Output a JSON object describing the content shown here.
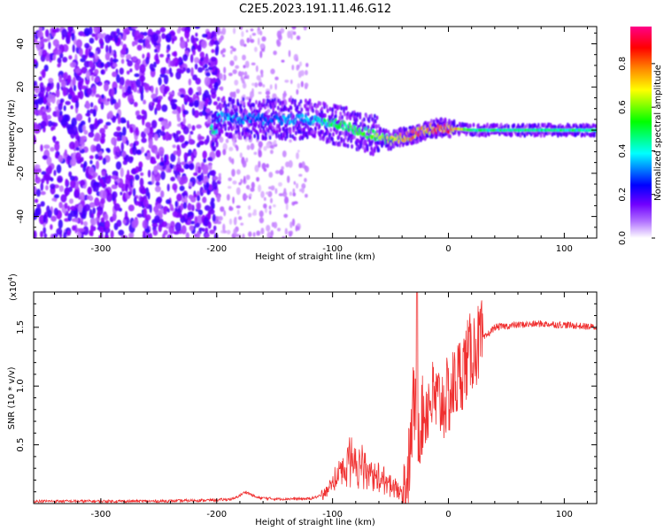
{
  "title": "C2E5.2023.191.11.46.G12",
  "chart_data": [
    {
      "type": "heatmap",
      "xlabel": "Height of straight line (km)",
      "ylabel": "Frequency (Hz)",
      "xlim": [
        -358,
        128
      ],
      "ylim": [
        -50,
        48
      ],
      "x_ticks": [
        -300,
        -200,
        -100,
        0,
        100
      ],
      "x_tick_labels": [
        "-300",
        "-200",
        "-100",
        "0",
        "100"
      ],
      "y_ticks": [
        -40,
        -20,
        0,
        20,
        40
      ],
      "y_tick_labels": [
        "-40",
        "-20",
        "0",
        "20",
        "40"
      ],
      "colorbar": {
        "label": "Normalized spectral amplitude",
        "range": [
          0,
          0.97
        ],
        "ticks": [
          0,
          0.2,
          0.4,
          0.6,
          0.8
        ],
        "tick_labels": [
          "0.0",
          "0.2",
          "0.4",
          "0.6",
          "0.8"
        ],
        "colors": [
          "#ffffff",
          "#8800ff",
          "#0000ff",
          "#00ffff",
          "#00ff00",
          "#ffff00",
          "#ff8800",
          "#ff0000",
          "#ff0088"
        ]
      },
      "ridge_track": [
        {
          "x": -200,
          "y": 6,
          "amplitude": 0.35
        },
        {
          "x": -160,
          "y": 5,
          "amplitude": 0.3
        },
        {
          "x": -120,
          "y": 5,
          "amplitude": 0.35
        },
        {
          "x": -100,
          "y": 3,
          "amplitude": 0.45
        },
        {
          "x": -80,
          "y": 0,
          "amplitude": 0.5
        },
        {
          "x": -60,
          "y": -3,
          "amplitude": 0.55
        },
        {
          "x": -50,
          "y": -5,
          "amplitude": 0.6
        },
        {
          "x": -40,
          "y": -3,
          "amplitude": 0.7
        },
        {
          "x": -30,
          "y": -2,
          "amplitude": 0.75
        },
        {
          "x": -20,
          "y": 0,
          "amplitude": 0.7
        },
        {
          "x": -10,
          "y": 1,
          "amplitude": 0.85
        },
        {
          "x": 0,
          "y": 1,
          "amplitude": 0.8
        },
        {
          "x": 20,
          "y": 0,
          "amplitude": 0.45
        },
        {
          "x": 60,
          "y": 0,
          "amplitude": 0.45
        },
        {
          "x": 100,
          "y": 0,
          "amplitude": 0.45
        },
        {
          "x": 128,
          "y": 0,
          "amplitude": 0.45
        }
      ]
    },
    {
      "type": "line",
      "xlabel": "Height of straight line (km)",
      "ylabel": "SNR (10 * v/v)",
      "y_scale_note": "(x10",
      "y_scale_exp": "4",
      "xlim": [
        -358,
        128
      ],
      "ylim": [
        0,
        1.8
      ],
      "x_ticks": [
        -300,
        -200,
        -100,
        0,
        100
      ],
      "x_tick_labels": [
        "-300",
        "-200",
        "-100",
        "0",
        "100"
      ],
      "y_ticks": [
        0.5,
        1.0,
        1.5
      ],
      "y_tick_labels": [
        "0.5",
        "1.0",
        "1.5"
      ],
      "series": [
        {
          "color": "#f03030",
          "x": [
            -358,
            -300,
            -250,
            -200,
            -185,
            -175,
            -165,
            -150,
            -120,
            -105,
            -95,
            -85,
            -75,
            -65,
            -55,
            -45,
            -38,
            -33,
            -30,
            -27,
            -22,
            -15,
            -8,
            0,
            10,
            20,
            30,
            40,
            60,
            80,
            100,
            128
          ],
          "y": [
            0.02,
            0.02,
            0.02,
            0.03,
            0.04,
            0.1,
            0.05,
            0.04,
            0.04,
            0.08,
            0.2,
            0.3,
            0.25,
            0.2,
            0.15,
            0.1,
            0.1,
            0.4,
            0.9,
            0.6,
            0.75,
            0.9,
            0.85,
            0.9,
            1.1,
            1.3,
            1.4,
            1.5,
            1.52,
            1.53,
            1.52,
            1.5
          ]
        }
      ]
    }
  ]
}
